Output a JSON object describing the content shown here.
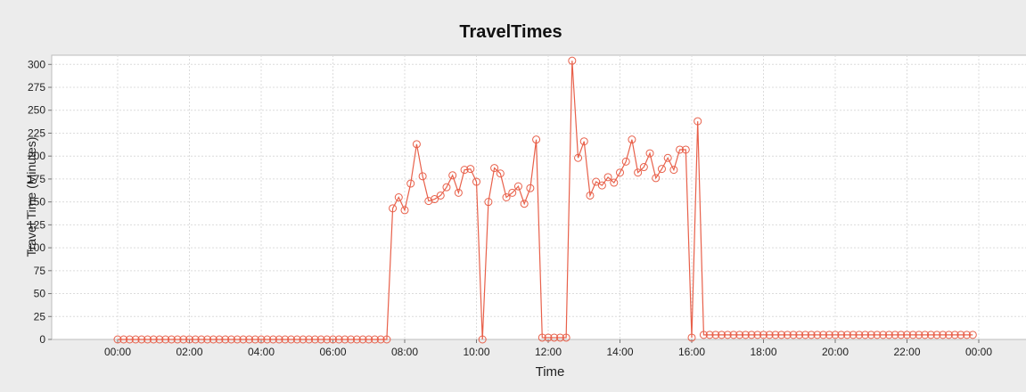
{
  "chart_data": {
    "type": "line",
    "title": "TravelTimes",
    "xlabel": "Time",
    "ylabel": "Travel Time (Minutes)",
    "xlim": [
      "00:00",
      "24:00"
    ],
    "ylim": [
      0,
      310
    ],
    "grid": true,
    "legend": "none",
    "x_tick_labels": [
      "00:00",
      "02:00",
      "04:00",
      "06:00",
      "08:00",
      "10:00",
      "12:00",
      "14:00",
      "16:00",
      "18:00",
      "20:00",
      "22:00",
      "00:00"
    ],
    "y_tick_labels": [
      "0",
      "25",
      "50",
      "75",
      "100",
      "125",
      "150",
      "175",
      "200",
      "225",
      "250",
      "275",
      "300"
    ],
    "series": [
      {
        "color": "#e8604a",
        "marker": "circle",
        "points": [
          [
            "00:00",
            0
          ],
          [
            "00:10",
            0
          ],
          [
            "00:20",
            0
          ],
          [
            "00:30",
            0
          ],
          [
            "00:40",
            0
          ],
          [
            "00:50",
            0
          ],
          [
            "01:00",
            0
          ],
          [
            "01:10",
            0
          ],
          [
            "01:20",
            0
          ],
          [
            "01:30",
            0
          ],
          [
            "01:40",
            0
          ],
          [
            "01:50",
            0
          ],
          [
            "02:00",
            0
          ],
          [
            "02:10",
            0
          ],
          [
            "02:20",
            0
          ],
          [
            "02:30",
            0
          ],
          [
            "02:40",
            0
          ],
          [
            "02:50",
            0
          ],
          [
            "03:00",
            0
          ],
          [
            "03:10",
            0
          ],
          [
            "03:20",
            0
          ],
          [
            "03:30",
            0
          ],
          [
            "03:40",
            0
          ],
          [
            "03:50",
            0
          ],
          [
            "04:00",
            0
          ],
          [
            "04:10",
            0
          ],
          [
            "04:20",
            0
          ],
          [
            "04:30",
            0
          ],
          [
            "04:40",
            0
          ],
          [
            "04:50",
            0
          ],
          [
            "05:00",
            0
          ],
          [
            "05:10",
            0
          ],
          [
            "05:20",
            0
          ],
          [
            "05:30",
            0
          ],
          [
            "05:40",
            0
          ],
          [
            "05:50",
            0
          ],
          [
            "06:00",
            0
          ],
          [
            "06:10",
            0
          ],
          [
            "06:20",
            0
          ],
          [
            "06:30",
            0
          ],
          [
            "06:40",
            0
          ],
          [
            "06:50",
            0
          ],
          [
            "07:00",
            0
          ],
          [
            "07:10",
            0
          ],
          [
            "07:20",
            0
          ],
          [
            "07:30",
            0
          ],
          [
            "07:40",
            143
          ],
          [
            "07:50",
            155
          ],
          [
            "08:00",
            141
          ],
          [
            "08:10",
            170
          ],
          [
            "08:20",
            213
          ],
          [
            "08:30",
            178
          ],
          [
            "08:40",
            151
          ],
          [
            "08:50",
            153
          ],
          [
            "09:00",
            157
          ],
          [
            "09:10",
            166
          ],
          [
            "09:20",
            179
          ],
          [
            "09:30",
            160
          ],
          [
            "09:40",
            185
          ],
          [
            "09:50",
            186
          ],
          [
            "10:00",
            172
          ],
          [
            "10:10",
            0
          ],
          [
            "10:20",
            150
          ],
          [
            "10:30",
            187
          ],
          [
            "10:40",
            181
          ],
          [
            "10:50",
            155
          ],
          [
            "11:00",
            160
          ],
          [
            "11:10",
            167
          ],
          [
            "11:20",
            148
          ],
          [
            "11:30",
            165
          ],
          [
            "11:40",
            218
          ],
          [
            "11:50",
            2
          ],
          [
            "12:00",
            2
          ],
          [
            "12:10",
            2
          ],
          [
            "12:20",
            2
          ],
          [
            "12:30",
            2
          ],
          [
            "12:40",
            304
          ],
          [
            "12:50",
            198
          ],
          [
            "13:00",
            216
          ],
          [
            "13:10",
            157
          ],
          [
            "13:20",
            172
          ],
          [
            "13:30",
            168
          ],
          [
            "13:40",
            177
          ],
          [
            "13:50",
            171
          ],
          [
            "14:00",
            182
          ],
          [
            "14:10",
            194
          ],
          [
            "14:20",
            218
          ],
          [
            "14:30",
            182
          ],
          [
            "14:40",
            188
          ],
          [
            "14:50",
            203
          ],
          [
            "15:00",
            176
          ],
          [
            "15:10",
            186
          ],
          [
            "15:20",
            198
          ],
          [
            "15:30",
            185
          ],
          [
            "15:40",
            207
          ],
          [
            "15:50",
            207
          ],
          [
            "16:00",
            2
          ],
          [
            "16:10",
            238
          ],
          [
            "16:20",
            5
          ],
          [
            "16:30",
            5
          ],
          [
            "16:40",
            5
          ],
          [
            "16:50",
            5
          ],
          [
            "17:00",
            5
          ],
          [
            "17:10",
            5
          ],
          [
            "17:20",
            5
          ],
          [
            "17:30",
            5
          ],
          [
            "17:40",
            5
          ],
          [
            "17:50",
            5
          ],
          [
            "18:00",
            5
          ],
          [
            "18:10",
            5
          ],
          [
            "18:20",
            5
          ],
          [
            "18:30",
            5
          ],
          [
            "18:40",
            5
          ],
          [
            "18:50",
            5
          ],
          [
            "19:00",
            5
          ],
          [
            "19:10",
            5
          ],
          [
            "19:20",
            5
          ],
          [
            "19:30",
            5
          ],
          [
            "19:40",
            5
          ],
          [
            "19:50",
            5
          ],
          [
            "20:00",
            5
          ],
          [
            "20:10",
            5
          ],
          [
            "20:20",
            5
          ],
          [
            "20:30",
            5
          ],
          [
            "20:40",
            5
          ],
          [
            "20:50",
            5
          ],
          [
            "21:00",
            5
          ],
          [
            "21:10",
            5
          ],
          [
            "21:20",
            5
          ],
          [
            "21:30",
            5
          ],
          [
            "21:40",
            5
          ],
          [
            "21:50",
            5
          ],
          [
            "22:00",
            5
          ],
          [
            "22:10",
            5
          ],
          [
            "22:20",
            5
          ],
          [
            "22:30",
            5
          ],
          [
            "22:40",
            5
          ],
          [
            "22:50",
            5
          ],
          [
            "23:00",
            5
          ],
          [
            "23:10",
            5
          ],
          [
            "23:20",
            5
          ],
          [
            "23:30",
            5
          ],
          [
            "23:40",
            5
          ],
          [
            "23:50",
            5
          ]
        ]
      }
    ]
  },
  "colors": {
    "background": "#ececec",
    "plot_background": "#ffffff",
    "series": "#e8604a",
    "grid": "#dcdcdc",
    "axis_text": "#222222"
  }
}
